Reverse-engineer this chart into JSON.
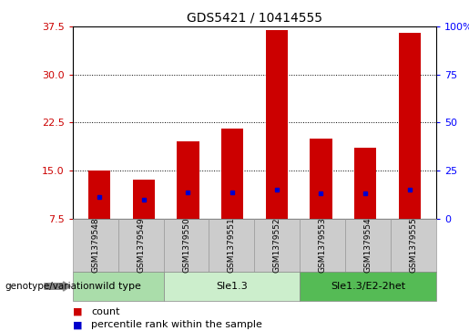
{
  "title": "GDS5421 / 10414555",
  "samples": [
    "GSM1379548",
    "GSM1379549",
    "GSM1379550",
    "GSM1379551",
    "GSM1379552",
    "GSM1379553",
    "GSM1379554",
    "GSM1379555"
  ],
  "counts": [
    15.0,
    13.5,
    19.5,
    21.5,
    37.0,
    20.0,
    18.5,
    36.5
  ],
  "percentile_ranks": [
    11.0,
    10.0,
    13.5,
    13.5,
    15.2,
    13.0,
    13.0,
    15.2
  ],
  "bar_bottom": 7.5,
  "ylim_left": [
    7.5,
    37.5
  ],
  "yticks_left": [
    7.5,
    15.0,
    22.5,
    30.0,
    37.5
  ],
  "ylim_right": [
    0,
    100
  ],
  "yticks_right": [
    0,
    25,
    50,
    75,
    100
  ],
  "bar_color": "#cc0000",
  "percentile_color": "#0000cc",
  "genotype_groups": [
    {
      "label": "wild type",
      "indices": [
        0,
        1
      ],
      "color": "#aaddaa"
    },
    {
      "label": "Sle1.3",
      "indices": [
        2,
        3,
        4
      ],
      "color": "#cceecc"
    },
    {
      "label": "Sle1.3/E2-2het",
      "indices": [
        5,
        6,
        7
      ],
      "color": "#55bb55"
    }
  ],
  "genotype_label": "genotype/variation",
  "legend_count_label": "count",
  "legend_percentile_label": "percentile rank within the sample",
  "bar_width": 0.5,
  "gray_box_color": "#cccccc",
  "gray_box_edge": "#999999"
}
